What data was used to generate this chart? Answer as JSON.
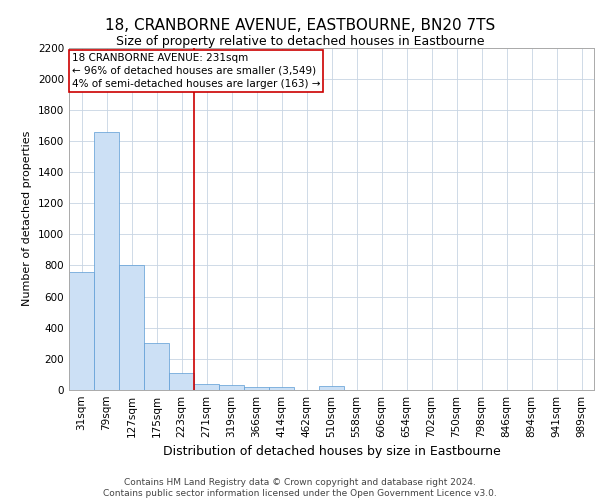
{
  "title": "18, CRANBORNE AVENUE, EASTBOURNE, BN20 7TS",
  "subtitle": "Size of property relative to detached houses in Eastbourne",
  "xlabel": "Distribution of detached houses by size in Eastbourne",
  "ylabel": "Number of detached properties",
  "categories": [
    "31sqm",
    "79sqm",
    "127sqm",
    "175sqm",
    "223sqm",
    "271sqm",
    "319sqm",
    "366sqm",
    "414sqm",
    "462sqm",
    "510sqm",
    "558sqm",
    "606sqm",
    "654sqm",
    "702sqm",
    "750sqm",
    "798sqm",
    "846sqm",
    "894sqm",
    "941sqm",
    "989sqm"
  ],
  "values": [
    760,
    1660,
    800,
    300,
    110,
    40,
    30,
    20,
    20,
    0,
    25,
    0,
    0,
    0,
    0,
    0,
    0,
    0,
    0,
    0,
    0
  ],
  "bar_color": "#cce0f5",
  "bar_edge_color": "#5b9bd5",
  "property_line_x": 4.5,
  "property_line_color": "#cc0000",
  "annotation_box_text": "18 CRANBORNE AVENUE: 231sqm\n← 96% of detached houses are smaller (3,549)\n4% of semi-detached houses are larger (163) →",
  "annotation_box_color": "#cc0000",
  "annotation_box_bg": "#ffffff",
  "ylim": [
    0,
    2200
  ],
  "yticks": [
    0,
    200,
    400,
    600,
    800,
    1000,
    1200,
    1400,
    1600,
    1800,
    2000,
    2200
  ],
  "grid_color": "#c8d4e3",
  "footer_text": "Contains HM Land Registry data © Crown copyright and database right 2024.\nContains public sector information licensed under the Open Government Licence v3.0.",
  "title_fontsize": 11,
  "subtitle_fontsize": 9,
  "xlabel_fontsize": 9,
  "ylabel_fontsize": 8,
  "tick_fontsize": 7.5,
  "footer_fontsize": 6.5,
  "ann_fontsize": 7.5
}
